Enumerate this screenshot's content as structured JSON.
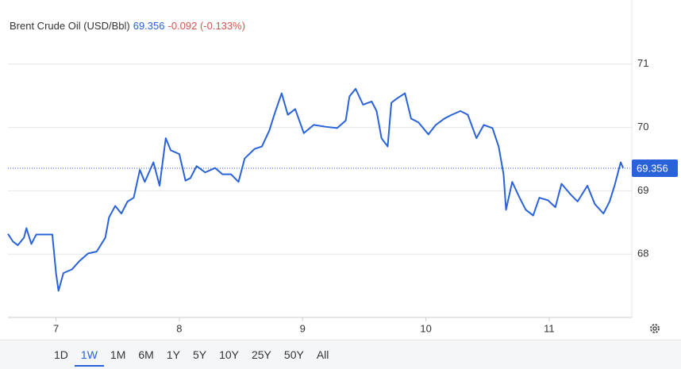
{
  "header": {
    "title": "Brent Crude Oil (USD/Bbl)",
    "price": "69.356",
    "change": "-0.092 (-0.133%)"
  },
  "range_buttons": [
    "1D",
    "1W",
    "1M",
    "6M",
    "1Y",
    "5Y",
    "10Y",
    "25Y",
    "50Y",
    "All"
  ],
  "chart_data": {
    "type": "line",
    "x": [
      6.61,
      6.65,
      6.69,
      6.74,
      6.76,
      6.8,
      6.84,
      6.97,
      7.0,
      7.02,
      7.06,
      7.13,
      7.19,
      7.26,
      7.33,
      7.4,
      7.43,
      7.48,
      7.53,
      7.58,
      7.63,
      7.68,
      7.72,
      7.79,
      7.84,
      7.89,
      7.93,
      8.0,
      8.05,
      8.09,
      8.14,
      8.21,
      8.29,
      8.35,
      8.42,
      8.48,
      8.53,
      8.61,
      8.67,
      8.73,
      8.77,
      8.83,
      8.88,
      8.94,
      9.01,
      9.09,
      9.19,
      9.28,
      9.35,
      9.38,
      9.43,
      9.49,
      9.56,
      9.6,
      9.64,
      9.69,
      9.72,
      9.76,
      9.83,
      9.88,
      9.94,
      10.02,
      10.08,
      10.15,
      10.21,
      10.28,
      10.34,
      10.41,
      10.47,
      10.54,
      10.59,
      10.63,
      10.65,
      10.7,
      10.76,
      10.81,
      10.87,
      10.92,
      10.99,
      11.05,
      11.1,
      11.17,
      11.23,
      11.31,
      11.37,
      11.44,
      11.49,
      11.53,
      11.58,
      11.6
    ],
    "series": [
      {
        "name": "Brent Crude Oil",
        "color": "#2962d9",
        "values": [
          68.32,
          68.2,
          68.14,
          68.26,
          68.41,
          68.16,
          68.31,
          68.31,
          67.7,
          67.42,
          67.7,
          67.76,
          67.89,
          68.01,
          68.04,
          68.26,
          68.58,
          68.76,
          68.64,
          68.83,
          68.89,
          69.33,
          69.14,
          69.45,
          69.08,
          69.83,
          69.64,
          69.58,
          69.16,
          69.2,
          69.39,
          69.29,
          69.36,
          69.26,
          69.26,
          69.14,
          69.51,
          69.66,
          69.7,
          69.95,
          70.2,
          70.54,
          70.2,
          70.29,
          69.91,
          70.04,
          70.01,
          69.99,
          70.11,
          70.49,
          70.61,
          70.36,
          70.41,
          70.26,
          69.83,
          69.7,
          70.39,
          70.45,
          70.54,
          70.14,
          70.08,
          69.89,
          70.04,
          70.14,
          70.2,
          70.26,
          70.2,
          69.83,
          70.04,
          69.99,
          69.7,
          69.26,
          68.7,
          69.14,
          68.89,
          68.7,
          68.61,
          68.89,
          68.85,
          68.74,
          69.11,
          68.95,
          68.83,
          69.08,
          68.79,
          68.64,
          68.83,
          69.08,
          69.45,
          69.36
        ]
      }
    ],
    "xlim": [
      6.61,
      11.67
    ],
    "xticks": [
      7,
      8,
      9,
      10,
      11
    ],
    "ylim": [
      67.0,
      71.95
    ],
    "yticks": [
      68,
      69,
      70,
      71
    ],
    "reference_line": 69.356,
    "grid": true
  }
}
